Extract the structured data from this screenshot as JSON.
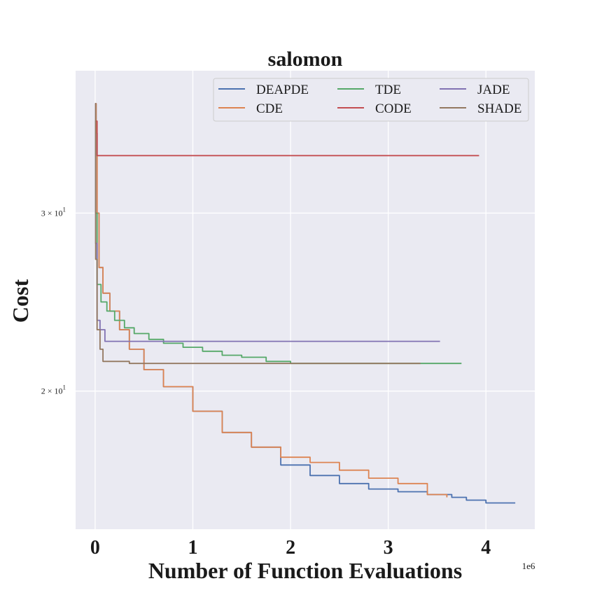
{
  "chart_data": {
    "type": "line",
    "title": "salomon",
    "xlabel": "Number of Function Evaluations",
    "ylabel": "Cost",
    "x_offset_label": "1e6",
    "xlim": [
      -0.2,
      4.5
    ],
    "ylim": [
      14.6,
      41.5
    ],
    "yscale": "log",
    "x_ticks": [
      0,
      1,
      2,
      3,
      4
    ],
    "x_tick_labels": [
      "0",
      "1",
      "2",
      "3",
      "4"
    ],
    "y_ticks": [
      {
        "value": 30,
        "mantissa": "3",
        "base": "10",
        "exponent": "1"
      },
      {
        "value": 20,
        "mantissa": "2",
        "base": "10",
        "exponent": "1"
      }
    ],
    "grid": true,
    "legend": {
      "position": "top-right",
      "columns": 3
    },
    "series": [
      {
        "name": "DEAPDE",
        "color": "#4c72b0",
        "x": [
          0,
          0.01,
          0.02,
          0.04,
          0.08,
          0.15,
          0.25,
          0.35,
          0.5,
          0.7,
          1.0,
          1.3,
          1.6,
          1.9,
          2.2,
          2.5,
          2.8,
          3.1,
          3.4,
          3.65,
          3.8,
          4.0,
          4.3
        ],
        "y": [
          38.5,
          36.0,
          30.0,
          26.5,
          25.0,
          24.0,
          23.0,
          22.0,
          21.0,
          20.2,
          19.1,
          18.2,
          17.6,
          16.9,
          16.5,
          16.2,
          16.0,
          15.9,
          15.8,
          15.7,
          15.6,
          15.5,
          15.5
        ]
      },
      {
        "name": "CDE",
        "color": "#dd8452",
        "x": [
          0,
          0.01,
          0.02,
          0.04,
          0.08,
          0.15,
          0.25,
          0.35,
          0.5,
          0.7,
          1.0,
          1.3,
          1.6,
          1.9,
          2.2,
          2.5,
          2.8,
          3.1,
          3.4,
          3.6
        ],
        "y": [
          38.5,
          36.0,
          30.0,
          26.5,
          25.0,
          24.0,
          23.0,
          22.0,
          21.0,
          20.2,
          19.1,
          18.2,
          17.6,
          17.2,
          17.0,
          16.7,
          16.4,
          16.2,
          15.8,
          15.7
        ]
      },
      {
        "name": "TDE",
        "color": "#55a868",
        "x": [
          0,
          0.005,
          0.02,
          0.06,
          0.12,
          0.2,
          0.3,
          0.4,
          0.55,
          0.7,
          0.9,
          1.1,
          1.3,
          1.5,
          1.75,
          2.0,
          3.0,
          3.75
        ],
        "y": [
          37.0,
          30.0,
          25.5,
          24.5,
          24.0,
          23.5,
          23.1,
          22.8,
          22.5,
          22.3,
          22.1,
          21.9,
          21.7,
          21.6,
          21.4,
          21.3,
          21.3,
          21.3
        ]
      },
      {
        "name": "CODE",
        "color": "#c44e52",
        "x": [
          0,
          0.02,
          3.93
        ],
        "y": [
          37.0,
          34.2,
          34.2
        ]
      },
      {
        "name": "JADE",
        "color": "#8172b3",
        "x": [
          0,
          0.005,
          0.02,
          0.05,
          0.1,
          3.53
        ],
        "y": [
          38.5,
          28.0,
          23.5,
          23.0,
          22.4,
          22.4
        ]
      },
      {
        "name": "SHADE",
        "color": "#937860",
        "x": [
          0,
          0.005,
          0.02,
          0.05,
          0.08,
          0.35,
          3.33
        ],
        "y": [
          38.5,
          27.0,
          23.0,
          22.0,
          21.4,
          21.3,
          21.3
        ]
      }
    ]
  }
}
